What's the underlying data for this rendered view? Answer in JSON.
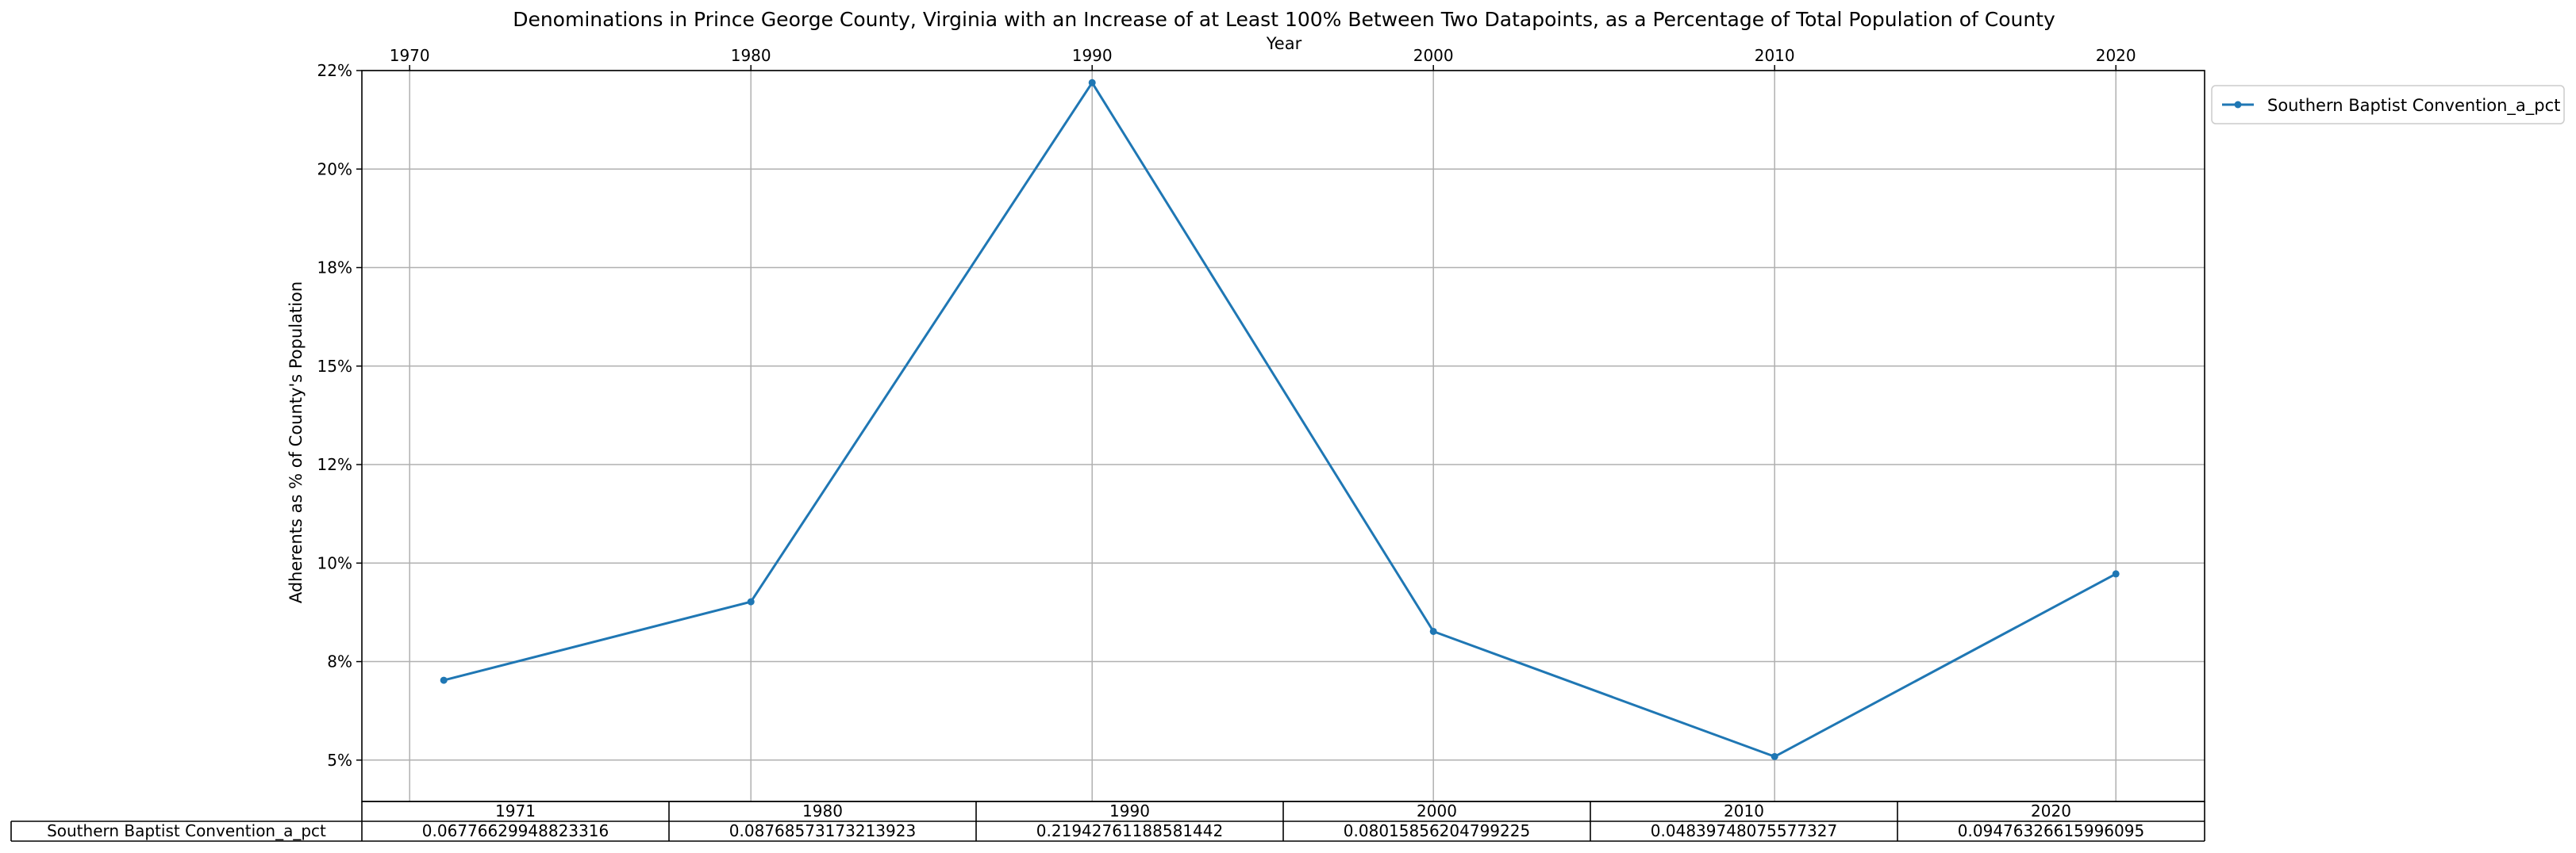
{
  "chart_data": {
    "type": "line",
    "title": "Denominations in Prince George County, Virginia with an Increase of at Least 100% Between Two Datapoints, as a Percentage of Total Population of County",
    "xlabel": "Year",
    "ylabel": "Adherents as % of County's Population",
    "x_ticks": [
      "1970",
      "1980",
      "1990",
      "2000",
      "2010",
      "2020"
    ],
    "x_tick_values": [
      1970,
      1980,
      1990,
      2000,
      2010,
      2020
    ],
    "y_ticks": [
      "5%",
      "8%",
      "10%",
      "12%",
      "15%",
      "18%",
      "20%",
      "22%"
    ],
    "y_tick_values": [
      0.0475,
      0.0725,
      0.0975,
      0.1225,
      0.1475,
      0.1725,
      0.1975,
      0.2225
    ],
    "xlim": [
      1968.6,
      2022.6
    ],
    "ylim": [
      0.037,
      0.2225
    ],
    "grid": true,
    "legend_position": "outside top-right",
    "series": [
      {
        "name": "Southern Baptist Convention_a_pct",
        "color": "#1f77b4",
        "x": [
          1971,
          1980,
          1990,
          2000,
          2010,
          2020
        ],
        "values": [
          0.06776629948823316,
          0.08768573173213923,
          0.21942761188581442,
          0.08015856204799225,
          0.04839748075577327,
          0.09476326615996095
        ]
      }
    ],
    "table": {
      "columns": [
        "1971",
        "1980",
        "1990",
        "2000",
        "2010",
        "2020"
      ],
      "row_label": "Southern Baptist Convention_a_pct",
      "cells": [
        "0.06776629948823316",
        "0.08768573173213923",
        "0.21942761188581442",
        "0.08015856204799225",
        "0.04839748075577327",
        "0.09476326615996095"
      ]
    }
  }
}
